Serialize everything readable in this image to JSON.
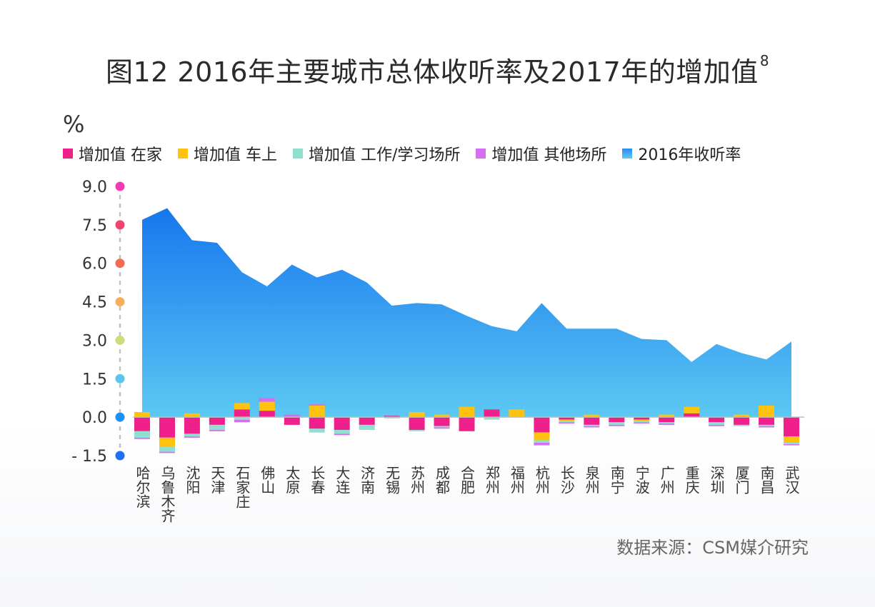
{
  "page": {
    "title": "图12 2016年主要城市总体收听率及2017年的增加值",
    "title_sup": "8",
    "unit": "%",
    "source": "数据来源：CSM媒介研究"
  },
  "chart_data": {
    "type": "area",
    "categories": [
      "哈尔滨",
      "乌鲁木齐",
      "沈阳",
      "天津",
      "石家庄",
      "佛山",
      "太原",
      "长春",
      "大连",
      "济南",
      "无锡",
      "苏州",
      "成都",
      "合肥",
      "郑州",
      "福州",
      "杭州",
      "长沙",
      "泉州",
      "南宁",
      "宁波",
      "广州",
      "重庆",
      "深圳",
      "厦门",
      "南昌",
      "武汉"
    ],
    "ylim": [
      -1.5,
      9.0
    ],
    "yticks": [
      "9.0",
      "7.5",
      "6.0",
      "4.5",
      "3.0",
      "1.5",
      "0.0",
      "- 1.5"
    ],
    "ytick_values": [
      9.0,
      7.5,
      6.0,
      4.5,
      3.0,
      1.5,
      0.0,
      -1.5
    ],
    "ytick_dot_colors": [
      "#f23ab5",
      "#f0456e",
      "#f56a4f",
      "#f7ae5b",
      "#cfdc7e",
      "#5ec6ec",
      "#1f8ff2",
      "#1f6ff2"
    ],
    "series": [
      {
        "name": "2016年收听率",
        "kind": "area",
        "color": "#2a8cf0",
        "values": [
          7.7,
          8.15,
          6.9,
          6.8,
          5.65,
          5.1,
          5.95,
          5.45,
          5.75,
          5.25,
          4.35,
          4.45,
          4.4,
          3.95,
          3.55,
          3.35,
          4.45,
          3.45,
          3.45,
          3.45,
          3.05,
          3.0,
          2.15,
          2.85,
          2.5,
          2.25,
          2.95
        ]
      },
      {
        "name": "增加值 在家",
        "kind": "bar",
        "color": "#ef1f8c",
        "values": [
          -0.55,
          -0.8,
          -0.65,
          -0.3,
          0.3,
          0.25,
          -0.3,
          -0.45,
          -0.5,
          -0.3,
          0.05,
          -0.5,
          -0.35,
          -0.55,
          0.3,
          0.0,
          -0.6,
          -0.1,
          -0.3,
          -0.2,
          -0.1,
          -0.2,
          0.15,
          -0.2,
          -0.3,
          -0.3,
          -0.75
        ]
      },
      {
        "name": "增加值 车上",
        "kind": "bar",
        "color": "#ffc20e",
        "values": [
          0.2,
          -0.35,
          0.15,
          0.0,
          0.25,
          0.35,
          0.0,
          0.45,
          0.0,
          0.0,
          0.0,
          0.2,
          0.1,
          0.4,
          0.0,
          0.3,
          -0.3,
          -0.05,
          0.1,
          0.0,
          -0.05,
          0.1,
          0.25,
          0.0,
          0.1,
          0.45,
          -0.25
        ]
      },
      {
        "name": "增加值 工作/学习场所",
        "kind": "bar",
        "color": "#8ee1cf",
        "values": [
          -0.25,
          -0.2,
          -0.1,
          -0.2,
          -0.1,
          0.0,
          0.0,
          -0.15,
          -0.15,
          -0.2,
          -0.05,
          -0.05,
          -0.05,
          0.0,
          -0.1,
          0.0,
          -0.1,
          -0.05,
          -0.05,
          -0.1,
          -0.05,
          -0.05,
          0.0,
          -0.1,
          -0.05,
          -0.05,
          -0.05
        ]
      },
      {
        "name": "增加值 其他场所",
        "kind": "bar",
        "color": "#d66ef2",
        "values": [
          -0.05,
          -0.05,
          -0.05,
          -0.05,
          -0.1,
          0.15,
          0.1,
          0.05,
          -0.05,
          0.0,
          0.0,
          0.0,
          -0.05,
          0.0,
          0.0,
          0.0,
          -0.1,
          -0.05,
          -0.05,
          -0.05,
          -0.05,
          -0.05,
          0.0,
          -0.05,
          0.0,
          -0.05,
          -0.05
        ]
      }
    ],
    "legend": [
      {
        "label": "增加值 在家",
        "color": "#ef1f8c"
      },
      {
        "label": "增加值 车上",
        "color": "#ffc20e"
      },
      {
        "label": "增加值 工作/学习场所",
        "color": "#8ee1cf"
      },
      {
        "label": "增加值 其他场所",
        "color": "#d66ef2"
      },
      {
        "label": "2016年收听率",
        "color": "#4bb6ee"
      }
    ],
    "area_gradient": {
      "top": "#1677ee",
      "bottom": "#5cc8f3"
    },
    "grid": false,
    "legend_position": "top"
  }
}
